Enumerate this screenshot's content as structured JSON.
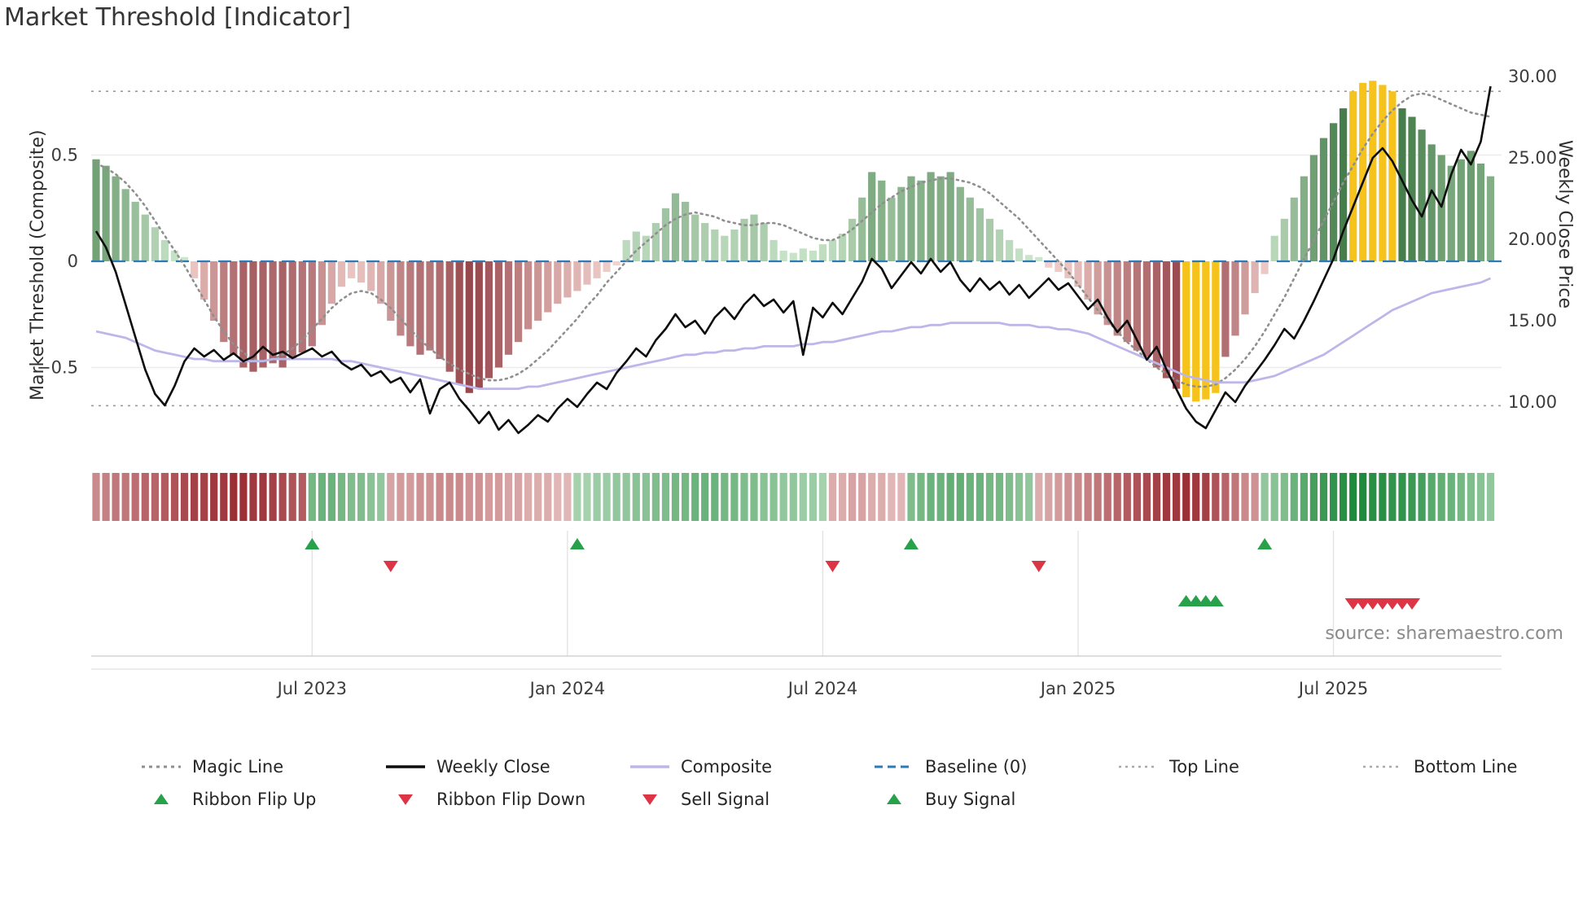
{
  "title": "Market Threshold [Indicator]",
  "source": "source: sharemaestro.com",
  "axes": {
    "left_title": "Market Threshold (Composite)",
    "right_title": "Weekly Close Price",
    "left_ticks": [
      {
        "v": 0.5,
        "label": "0.5"
      },
      {
        "v": 0,
        "label": "0"
      },
      {
        "v": -0.5,
        "label": "−0.5"
      }
    ],
    "right_ticks": [
      {
        "v": 30,
        "label": "30.00"
      },
      {
        "v": 25,
        "label": "25.00"
      },
      {
        "v": 20,
        "label": "20.00"
      },
      {
        "v": 15,
        "label": "15.00"
      },
      {
        "v": 10,
        "label": "10.00"
      }
    ],
    "x_ticks": [
      {
        "week": 22,
        "label": "Jul 2023"
      },
      {
        "week": 48,
        "label": "Jan 2024"
      },
      {
        "week": 74,
        "label": "Jul 2024"
      },
      {
        "week": 100,
        "label": "Jan 2025"
      },
      {
        "week": 126,
        "label": "Jul 2025"
      }
    ]
  },
  "legend": {
    "row1": [
      {
        "label": "Magic Line"
      },
      {
        "label": "Weekly Close"
      },
      {
        "label": "Composite"
      },
      {
        "label": "Baseline (0)"
      },
      {
        "label": "Top Line"
      },
      {
        "label": "Bottom Line"
      }
    ],
    "row2": [
      {
        "label": "Ribbon Flip Up"
      },
      {
        "label": "Ribbon Flip Down"
      },
      {
        "label": "Sell Signal"
      },
      {
        "label": "Buy Signal"
      }
    ]
  },
  "colors": {
    "bar_positive_light": "#cfe9cf",
    "bar_positive_dark": "#2d6b33",
    "bar_negative_light": "#f5d6d2",
    "bar_negative_dark": "#8e3a40",
    "bar_highlight": "#f5c31b",
    "ribbon_positive_light": "#dff0dd",
    "ribbon_positive_dark": "#1e8a3c",
    "ribbon_negative_light": "#f8e3e0",
    "ribbon_negative_dark": "#9b2f36",
    "magic_line": "#8f8f8f",
    "weekly_close": "#0d0d0d",
    "composite_line": "#bdb7e9",
    "baseline": "#2d7bb6",
    "threshold_line": "#9a9a9a",
    "flip_up": "#27a24a",
    "flip_down": "#dc3545",
    "buy": "#27a24a",
    "sell": "#dc3545",
    "grid": "#ececec",
    "signal_grid": "#e3e3e3",
    "axis_text": "#3c3c3c"
  },
  "chart_data": {
    "type": "combo",
    "x_unit": "weeks (Feb 2023 – Oct 2025)",
    "n_weeks": 143,
    "baseline": 0,
    "top_line": 0.8,
    "bottom_line": -0.68,
    "left_ylim": [
      -0.92,
      0.92
    ],
    "right_ylim": [
      6.7,
      30.7
    ],
    "grid": true,
    "legend_position": "bottom",
    "series": [
      {
        "name": "Threshold Bars",
        "type": "bar",
        "axis": "left",
        "values": [
          0.48,
          0.45,
          0.4,
          0.34,
          0.28,
          0.22,
          0.16,
          0.1,
          0.05,
          0.02,
          -0.08,
          -0.18,
          -0.28,
          -0.38,
          -0.44,
          -0.5,
          -0.52,
          -0.5,
          -0.48,
          -0.5,
          -0.46,
          -0.43,
          -0.4,
          -0.3,
          -0.2,
          -0.12,
          -0.08,
          -0.1,
          -0.14,
          -0.2,
          -0.28,
          -0.35,
          -0.4,
          -0.44,
          -0.42,
          -0.46,
          -0.52,
          -0.58,
          -0.62,
          -0.6,
          -0.55,
          -0.5,
          -0.44,
          -0.38,
          -0.32,
          -0.28,
          -0.24,
          -0.2,
          -0.17,
          -0.14,
          -0.11,
          -0.08,
          -0.05,
          -0.02,
          0.1,
          0.14,
          0.12,
          0.18,
          0.25,
          0.32,
          0.28,
          0.22,
          0.18,
          0.15,
          0.12,
          0.15,
          0.2,
          0.22,
          0.18,
          0.1,
          0.05,
          0.04,
          0.06,
          0.05,
          0.08,
          0.1,
          0.13,
          0.2,
          0.3,
          0.42,
          0.38,
          0.3,
          0.35,
          0.4,
          0.38,
          0.42,
          0.4,
          0.42,
          0.35,
          0.3,
          0.25,
          0.2,
          0.15,
          0.1,
          0.06,
          0.03,
          0.02,
          -0.03,
          -0.05,
          -0.08,
          -0.12,
          -0.18,
          -0.25,
          -0.3,
          -0.35,
          -0.38,
          -0.42,
          -0.45,
          -0.5,
          -0.55,
          -0.6,
          -0.64,
          -0.66,
          -0.65,
          -0.62,
          -0.45,
          -0.35,
          -0.25,
          -0.15,
          -0.06,
          0.12,
          0.2,
          0.3,
          0.4,
          0.5,
          0.58,
          0.65,
          0.72,
          0.8,
          0.84,
          0.85,
          0.83,
          0.8,
          0.72,
          0.68,
          0.62,
          0.55,
          0.5,
          0.45,
          0.48,
          0.52,
          0.46,
          0.4
        ]
      },
      {
        "name": "Magic Line",
        "type": "line",
        "axis": "left",
        "values": [
          0.46,
          0.44,
          0.41,
          0.37,
          0.32,
          0.26,
          0.19,
          0.12,
          0.05,
          -0.02,
          -0.1,
          -0.18,
          -0.26,
          -0.33,
          -0.39,
          -0.43,
          -0.46,
          -0.47,
          -0.46,
          -0.44,
          -0.41,
          -0.37,
          -0.32,
          -0.27,
          -0.22,
          -0.18,
          -0.15,
          -0.14,
          -0.15,
          -0.18,
          -0.22,
          -0.27,
          -0.32,
          -0.37,
          -0.41,
          -0.45,
          -0.48,
          -0.51,
          -0.53,
          -0.55,
          -0.56,
          -0.56,
          -0.55,
          -0.53,
          -0.5,
          -0.46,
          -0.42,
          -0.37,
          -0.32,
          -0.27,
          -0.21,
          -0.16,
          -0.1,
          -0.05,
          0.0,
          0.05,
          0.09,
          0.13,
          0.17,
          0.2,
          0.22,
          0.23,
          0.22,
          0.21,
          0.19,
          0.18,
          0.17,
          0.17,
          0.18,
          0.18,
          0.17,
          0.15,
          0.13,
          0.11,
          0.1,
          0.1,
          0.12,
          0.15,
          0.19,
          0.23,
          0.27,
          0.3,
          0.33,
          0.35,
          0.37,
          0.38,
          0.39,
          0.39,
          0.38,
          0.37,
          0.35,
          0.32,
          0.28,
          0.24,
          0.2,
          0.15,
          0.1,
          0.05,
          0.0,
          -0.05,
          -0.11,
          -0.17,
          -0.23,
          -0.28,
          -0.33,
          -0.38,
          -0.42,
          -0.46,
          -0.5,
          -0.53,
          -0.56,
          -0.58,
          -0.59,
          -0.59,
          -0.58,
          -0.55,
          -0.51,
          -0.46,
          -0.4,
          -0.33,
          -0.25,
          -0.17,
          -0.08,
          0.01,
          0.1,
          0.19,
          0.28,
          0.37,
          0.45,
          0.53,
          0.6,
          0.66,
          0.71,
          0.75,
          0.78,
          0.79,
          0.78,
          0.76,
          0.74,
          0.72,
          0.7,
          0.69,
          0.68
        ]
      },
      {
        "name": "Composite",
        "type": "line",
        "axis": "left",
        "values": [
          -0.33,
          -0.34,
          -0.35,
          -0.36,
          -0.38,
          -0.4,
          -0.42,
          -0.43,
          -0.44,
          -0.45,
          -0.46,
          -0.46,
          -0.47,
          -0.47,
          -0.47,
          -0.47,
          -0.47,
          -0.47,
          -0.46,
          -0.46,
          -0.46,
          -0.46,
          -0.46,
          -0.46,
          -0.46,
          -0.47,
          -0.47,
          -0.48,
          -0.49,
          -0.5,
          -0.51,
          -0.52,
          -0.53,
          -0.54,
          -0.55,
          -0.56,
          -0.57,
          -0.58,
          -0.59,
          -0.6,
          -0.6,
          -0.6,
          -0.6,
          -0.6,
          -0.59,
          -0.59,
          -0.58,
          -0.57,
          -0.56,
          -0.55,
          -0.54,
          -0.53,
          -0.52,
          -0.51,
          -0.5,
          -0.49,
          -0.48,
          -0.47,
          -0.46,
          -0.45,
          -0.44,
          -0.44,
          -0.43,
          -0.43,
          -0.42,
          -0.42,
          -0.41,
          -0.41,
          -0.4,
          -0.4,
          -0.4,
          -0.4,
          -0.39,
          -0.39,
          -0.38,
          -0.38,
          -0.37,
          -0.36,
          -0.35,
          -0.34,
          -0.33,
          -0.33,
          -0.32,
          -0.31,
          -0.31,
          -0.3,
          -0.3,
          -0.29,
          -0.29,
          -0.29,
          -0.29,
          -0.29,
          -0.29,
          -0.3,
          -0.3,
          -0.3,
          -0.31,
          -0.31,
          -0.32,
          -0.32,
          -0.33,
          -0.34,
          -0.36,
          -0.38,
          -0.4,
          -0.42,
          -0.44,
          -0.46,
          -0.48,
          -0.5,
          -0.52,
          -0.54,
          -0.55,
          -0.56,
          -0.57,
          -0.57,
          -0.57,
          -0.57,
          -0.56,
          -0.55,
          -0.54,
          -0.52,
          -0.5,
          -0.48,
          -0.46,
          -0.44,
          -0.41,
          -0.38,
          -0.35,
          -0.32,
          -0.29,
          -0.26,
          -0.23,
          -0.21,
          -0.19,
          -0.17,
          -0.15,
          -0.14,
          -0.13,
          -0.12,
          -0.11,
          -0.1,
          -0.08
        ]
      },
      {
        "name": "Weekly Close",
        "type": "line",
        "axis": "right",
        "values": [
          20.5,
          19.5,
          18.0,
          16.0,
          14.0,
          12.0,
          10.5,
          9.8,
          11.0,
          12.5,
          13.3,
          12.8,
          13.2,
          12.6,
          13.0,
          12.5,
          12.8,
          13.4,
          12.9,
          13.1,
          12.7,
          13.0,
          13.3,
          12.8,
          13.1,
          12.4,
          12.0,
          12.3,
          11.6,
          11.9,
          11.2,
          11.5,
          10.6,
          11.4,
          9.3,
          10.8,
          11.2,
          10.2,
          9.5,
          8.7,
          9.4,
          8.3,
          8.9,
          8.1,
          8.6,
          9.2,
          8.8,
          9.6,
          10.2,
          9.7,
          10.5,
          11.2,
          10.8,
          11.8,
          12.5,
          13.3,
          12.8,
          13.8,
          14.5,
          15.4,
          14.6,
          15.0,
          14.2,
          15.2,
          15.8,
          15.1,
          16.0,
          16.6,
          15.9,
          16.3,
          15.5,
          16.2,
          12.9,
          15.8,
          15.2,
          16.1,
          15.4,
          16.4,
          17.4,
          18.8,
          18.2,
          17.0,
          17.8,
          18.6,
          17.9,
          18.8,
          18.0,
          18.6,
          17.5,
          16.8,
          17.6,
          16.9,
          17.4,
          16.6,
          17.2,
          16.4,
          17.0,
          17.6,
          16.9,
          17.3,
          16.5,
          15.7,
          16.3,
          15.2,
          14.3,
          15.0,
          13.8,
          12.6,
          13.4,
          12.0,
          10.8,
          9.6,
          8.8,
          8.4,
          9.5,
          10.6,
          10.0,
          11.0,
          11.8,
          12.6,
          13.5,
          14.5,
          13.9,
          15.0,
          16.2,
          17.5,
          18.8,
          20.5,
          22.0,
          23.5,
          25.0,
          25.6,
          24.8,
          23.6,
          22.4,
          21.4,
          23.0,
          22.0,
          24.0,
          25.5,
          24.6,
          26.0,
          29.4
        ]
      }
    ],
    "ribbon": [
      -0.5,
      -0.55,
      -0.6,
      -0.6,
      -0.65,
      -0.7,
      -0.7,
      -0.75,
      -0.8,
      -0.85,
      -0.9,
      -0.9,
      -0.95,
      -0.95,
      -1.0,
      -1.0,
      -0.95,
      -0.95,
      -0.9,
      -0.85,
      -0.8,
      -0.75,
      0.55,
      0.6,
      0.6,
      0.55,
      0.5,
      0.5,
      0.45,
      0.4,
      -0.35,
      -0.4,
      -0.4,
      -0.45,
      -0.45,
      -0.5,
      -0.5,
      -0.5,
      -0.45,
      -0.45,
      -0.4,
      -0.4,
      -0.35,
      -0.35,
      -0.3,
      -0.3,
      -0.3,
      -0.25,
      -0.25,
      0.3,
      0.3,
      0.35,
      0.35,
      0.4,
      0.4,
      0.45,
      0.45,
      0.5,
      0.5,
      0.55,
      0.55,
      0.6,
      0.6,
      0.6,
      0.55,
      0.55,
      0.5,
      0.5,
      0.45,
      0.45,
      0.4,
      0.4,
      0.35,
      0.35,
      0.3,
      -0.3,
      -0.3,
      -0.35,
      -0.35,
      -0.3,
      -0.3,
      -0.25,
      -0.25,
      0.5,
      0.55,
      0.6,
      0.6,
      0.65,
      0.65,
      0.6,
      0.6,
      0.55,
      0.55,
      0.5,
      0.45,
      0.4,
      -0.3,
      -0.35,
      -0.4,
      -0.45,
      -0.5,
      -0.55,
      -0.6,
      -0.65,
      -0.7,
      -0.75,
      -0.8,
      -0.85,
      -0.9,
      -0.95,
      -0.95,
      -1.0,
      -0.95,
      -0.9,
      -0.8,
      -0.7,
      -0.6,
      -0.5,
      -0.45,
      0.4,
      0.45,
      0.5,
      0.6,
      0.7,
      0.8,
      0.85,
      0.9,
      0.95,
      1.0,
      1.0,
      0.95,
      0.95,
      0.9,
      0.9,
      0.85,
      0.8,
      0.7,
      0.65,
      0.6,
      0.55,
      0.5,
      0.45,
      0.4
    ],
    "highlight_bar_weeks": [
      111,
      112,
      113,
      114,
      128,
      129,
      130,
      131,
      132
    ],
    "markers": {
      "ribbon_flip_up_weeks": [
        22,
        49,
        83,
        119
      ],
      "ribbon_flip_down_weeks": [
        30,
        75,
        96
      ],
      "buy_signal_weeks": [
        111,
        112,
        113,
        114
      ],
      "sell_signal_weeks": [
        128,
        129,
        130,
        131,
        132,
        133,
        134
      ]
    }
  }
}
